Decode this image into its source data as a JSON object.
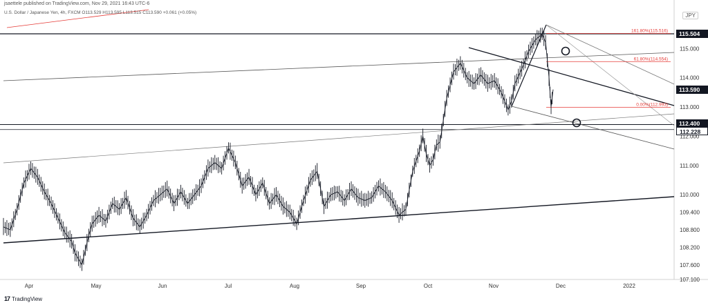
{
  "header": {
    "publisher": "jsaettele published on TradingView.com, Nov 29, 2021 16:43 UTC-6",
    "symbol": "U.S. Dollar / Japanese Yen, 4h, FXCM",
    "ohlc": "O113.529  H113.595  L113.515  C113.590  +0.061 (+0.05%)"
  },
  "currency": "JPY",
  "footer": {
    "brand": "TradingView"
  },
  "colors": {
    "up": "#131722",
    "line": "#131722",
    "fib": "#e53935",
    "channel": "#9e9e9e"
  },
  "chart_data": {
    "type": "line",
    "ylim": [
      107.1,
      116.0
    ],
    "y_ticks": [
      115.0,
      114.0,
      113.0,
      112.0,
      111.0,
      110.0,
      109.4,
      108.8,
      108.2,
      107.6,
      107.1
    ],
    "y_tick_labels": [
      "115.000",
      "114.000",
      "113.000",
      "112.000",
      "111.000",
      "110.000",
      "109.400",
      "108.800",
      "108.200",
      "107.600",
      "107.100"
    ],
    "x_labels": [
      "Apr",
      "May",
      "Jun",
      "Jul",
      "Aug",
      "Sep",
      "Oct",
      "Nov",
      "Dec",
      "2022"
    ],
    "price_tags": [
      {
        "label": "115.504",
        "value": 115.504,
        "style": "dark"
      },
      {
        "label": "113.590",
        "value": 113.59,
        "style": "dark"
      },
      {
        "label": "112.400",
        "value": 112.4,
        "style": "dark"
      },
      {
        "label": "112.228",
        "value": 112.228,
        "style": "light"
      }
    ],
    "fib_levels": [
      {
        "label": "161.80%(115.516)",
        "value": 115.516
      },
      {
        "label": "61.80%(114.554)",
        "value": 114.554
      },
      {
        "label": "0.00%(112.993)",
        "value": 112.993
      }
    ],
    "series": [
      {
        "values": [
          [
            0,
            108.9
          ],
          [
            10,
            108.8
          ],
          [
            20,
            109.5
          ],
          [
            30,
            110.4
          ],
          [
            40,
            110.9
          ],
          [
            50,
            110.6
          ],
          [
            60,
            110.1
          ],
          [
            70,
            109.7
          ],
          [
            80,
            109.2
          ],
          [
            90,
            108.7
          ],
          [
            100,
            108.4
          ],
          [
            105,
            108.0
          ],
          [
            110,
            107.8
          ],
          [
            115,
            107.6
          ],
          [
            120,
            108.1
          ],
          [
            125,
            108.6
          ],
          [
            130,
            109.0
          ],
          [
            140,
            109.3
          ],
          [
            150,
            109.1
          ],
          [
            160,
            109.7
          ],
          [
            170,
            109.5
          ],
          [
            180,
            109.9
          ],
          [
            190,
            109.2
          ],
          [
            200,
            108.9
          ],
          [
            210,
            109.3
          ],
          [
            220,
            109.8
          ],
          [
            230,
            110.0
          ],
          [
            240,
            110.2
          ],
          [
            250,
            109.7
          ],
          [
            260,
            110.1
          ],
          [
            270,
            109.7
          ],
          [
            280,
            110.0
          ],
          [
            290,
            110.3
          ],
          [
            300,
            110.9
          ],
          [
            310,
            111.1
          ],
          [
            320,
            110.9
          ],
          [
            330,
            111.6
          ],
          [
            340,
            111.1
          ],
          [
            350,
            110.3
          ],
          [
            360,
            110.6
          ],
          [
            370,
            110.0
          ],
          [
            380,
            110.4
          ],
          [
            390,
            109.7
          ],
          [
            400,
            110.0
          ],
          [
            410,
            109.6
          ],
          [
            420,
            109.4
          ],
          [
            430,
            109.0
          ],
          [
            440,
            109.8
          ],
          [
            450,
            110.5
          ],
          [
            460,
            110.8
          ],
          [
            470,
            109.6
          ],
          [
            480,
            110.0
          ],
          [
            490,
            110.1
          ],
          [
            500,
            109.8
          ],
          [
            510,
            110.2
          ],
          [
            520,
            109.9
          ],
          [
            530,
            109.8
          ],
          [
            540,
            109.9
          ],
          [
            550,
            110.3
          ],
          [
            560,
            110.1
          ],
          [
            570,
            109.8
          ],
          [
            580,
            109.3
          ],
          [
            590,
            109.5
          ],
          [
            600,
            110.8
          ],
          [
            610,
            111.5
          ],
          [
            615,
            112.0
          ],
          [
            620,
            111.4
          ],
          [
            625,
            111.0
          ],
          [
            630,
            111.2
          ],
          [
            635,
            111.7
          ],
          [
            640,
            111.8
          ],
          [
            650,
            113.3
          ],
          [
            660,
            114.2
          ],
          [
            670,
            114.5
          ],
          [
            680,
            114.0
          ],
          [
            690,
            113.8
          ],
          [
            700,
            114.1
          ],
          [
            710,
            113.8
          ],
          [
            720,
            113.9
          ],
          [
            730,
            113.5
          ],
          [
            740,
            112.9
          ],
          [
            745,
            113.2
          ],
          [
            750,
            113.8
          ],
          [
            760,
            114.3
          ],
          [
            770,
            114.9
          ],
          [
            780,
            115.3
          ],
          [
            790,
            115.5
          ],
          [
            795,
            115.2
          ],
          [
            800,
            114.0
          ],
          [
            803,
            113.0
          ],
          [
            806,
            113.6
          ]
        ]
      }
    ]
  }
}
